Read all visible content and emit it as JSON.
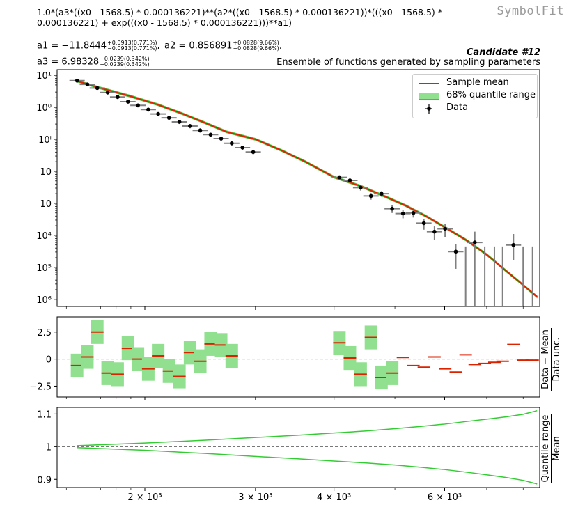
{
  "header": {
    "brand": "SymbolFit",
    "formula": "1.0*(a3*((x0 - 1568.5) * 0.000136221)**(a2*((x0 - 1568.5) * 0.000136221))*(((x0 - 1568.5) * 0.000136221) + exp(((x0 - 1568.5) * 0.000136221)))**a1)",
    "params": [
      {
        "name": "a1",
        "value": "−11.8444",
        "up": "+0.0913(0.771%)",
        "down": "−0.0913(0.771%)"
      },
      {
        "name": "a2",
        "value": "0.856891",
        "up": "+0.0828(9.66%)",
        "down": "−0.0828(9.66%)"
      },
      {
        "name": "a3",
        "value": "6.98328",
        "up": "+0.0239(0.342%)",
        "down": "−0.0239(0.342%)"
      }
    ],
    "candidate": "Candidate #12",
    "subtitle": "Ensemble of functions generated by sampling parameters"
  },
  "legend": {
    "sample_mean": "Sample mean",
    "quantile": "68% quantile range",
    "data": "Data"
  },
  "colors": {
    "mean": "#dd2200",
    "band": "#90e090",
    "band_line": "#33cc33",
    "data": "#000000",
    "err": "#808080"
  },
  "chart_data": [
    {
      "type": "scatter",
      "panel": "main",
      "yscale": "log",
      "xscale": "log",
      "xlim": [
        1450,
        8500
      ],
      "ylim": [
        6e-07,
        15
      ],
      "yticks": [
        "10⁶",
        "10⁵",
        "10⁴",
        "10⁳",
        "10⁲",
        "10ⁱ",
        "10⁰",
        "10¹"
      ],
      "series": [
        {
          "name": "Data",
          "x": [
            1560,
            1620,
            1680,
            1745,
            1810,
            1880,
            1950,
            2025,
            2100,
            2185,
            2270,
            2360,
            2450,
            2545,
            2645,
            2750,
            2860,
            2975,
            4080,
            4240,
            4410,
            4580,
            4760,
            4950,
            5150,
            5350,
            5560,
            5780,
            6010,
            6250,
            6700,
            7720
          ],
          "y": [
            6.8,
            5.2,
            4.0,
            2.9,
            2.1,
            1.5,
            1.15,
            0.85,
            0.62,
            0.47,
            0.35,
            0.26,
            0.19,
            0.14,
            0.105,
            0.075,
            0.055,
            0.04,
            0.0065,
            0.0052,
            0.0031,
            0.0017,
            0.002,
            0.00068,
            0.00048,
            0.0005,
            0.00024,
            0.00013,
            0.00016,
            3.1e-05,
            6e-05,
            5e-05
          ],
          "ylow": [
            5.9,
            4.5,
            3.5,
            2.5,
            1.8,
            1.3,
            0.99,
            0.73,
            0.53,
            0.4,
            0.3,
            0.22,
            0.16,
            0.12,
            0.089,
            0.064,
            0.047,
            0.034,
            0.0055,
            0.0044,
            0.0025,
            0.0013,
            0.0016,
            0.0005,
            0.00034,
            0.00036,
            0.00015,
            7e-05,
            9e-05,
            9e-06,
            6e-07,
            1.7e-05
          ],
          "yhigh": [
            7.7,
            5.9,
            4.5,
            3.3,
            2.4,
            1.7,
            1.3,
            0.97,
            0.71,
            0.54,
            0.4,
            0.3,
            0.22,
            0.16,
            0.121,
            0.086,
            0.063,
            0.046,
            0.0075,
            0.006,
            0.0037,
            0.0021,
            0.0024,
            0.00086,
            0.00062,
            0.00064,
            0.00033,
            0.00019,
            0.00023,
            5.3e-05,
            0.00013,
            0.00011
          ]
        },
        {
          "name": "Sample mean",
          "x": [
            1560,
            1700,
            1900,
            2100,
            2300,
            2500,
            2700,
            3000,
            3300,
            3600,
            4000,
            4400,
            4800,
            5200,
            5600,
            6000,
            6500,
            7000,
            7500,
            8000,
            8420
          ],
          "y": [
            6.6,
            4.0,
            2.2,
            1.2,
            0.62,
            0.32,
            0.17,
            0.1,
            0.045,
            0.02,
            0.0066,
            0.0035,
            0.0017,
            0.00085,
            0.0004,
            0.00018,
            7e-05,
            2.5e-05,
            8e-06,
            2.8e-06,
            1.2e-06
          ]
        }
      ]
    },
    {
      "type": "bar",
      "panel": "pull",
      "ylabel_num": "Data − Mean",
      "ylabel_den": "Data unc.",
      "ylim": [
        -3.5,
        3.9
      ],
      "yticks": [
        "−2.5",
        "0",
        "2.5"
      ],
      "values": [
        -0.6,
        0.2,
        2.5,
        -1.3,
        -1.4,
        1.0,
        0.0,
        -0.9,
        0.3,
        -1.1,
        -1.6,
        0.6,
        -0.2,
        1.4,
        1.3,
        0.3,
        1.5,
        0.1,
        -1.4,
        2.0,
        -1.7,
        -1.3,
        0.15,
        -0.6,
        -0.75,
        0.2,
        -0.9,
        -1.2,
        0.4,
        -0.5,
        -0.4,
        -0.3,
        -0.2,
        1.35,
        -0.1,
        -0.1
      ],
      "x": [
        1560,
        1620,
        1680,
        1745,
        1810,
        1880,
        1950,
        2025,
        2100,
        2185,
        2270,
        2360,
        2450,
        2545,
        2645,
        2750,
        4080,
        4240,
        4410,
        4580,
        4760,
        4950,
        5150,
        5350,
        5560,
        5780,
        6010,
        6250,
        6480,
        6700,
        6950,
        7200,
        7420,
        7720,
        8000,
        8280
      ]
    },
    {
      "type": "line",
      "panel": "quantile",
      "ylabel_num": "Quantile range",
      "ylabel_den": "Mean",
      "ylim": [
        0.875,
        1.12
      ],
      "yticks": [
        "0.9",
        "1",
        "1.1"
      ],
      "xticks": [
        "2 × 10³",
        "3 × 10³",
        "4 × 10³",
        "6 × 10³"
      ],
      "xtick_values": [
        2000,
        3000,
        4000,
        6000
      ],
      "x": [
        1560,
        2000,
        2500,
        3000,
        3500,
        4000,
        4500,
        5000,
        5500,
        6000,
        6500,
        7000,
        7500,
        8000,
        8420
      ],
      "upper": [
        1.003,
        1.011,
        1.02,
        1.028,
        1.035,
        1.042,
        1.048,
        1.055,
        1.062,
        1.069,
        1.077,
        1.084,
        1.091,
        1.099,
        1.11
      ],
      "lower": [
        0.997,
        0.989,
        0.979,
        0.97,
        0.963,
        0.956,
        0.95,
        0.944,
        0.937,
        0.93,
        0.922,
        0.914,
        0.906,
        0.897,
        0.886
      ]
    }
  ]
}
